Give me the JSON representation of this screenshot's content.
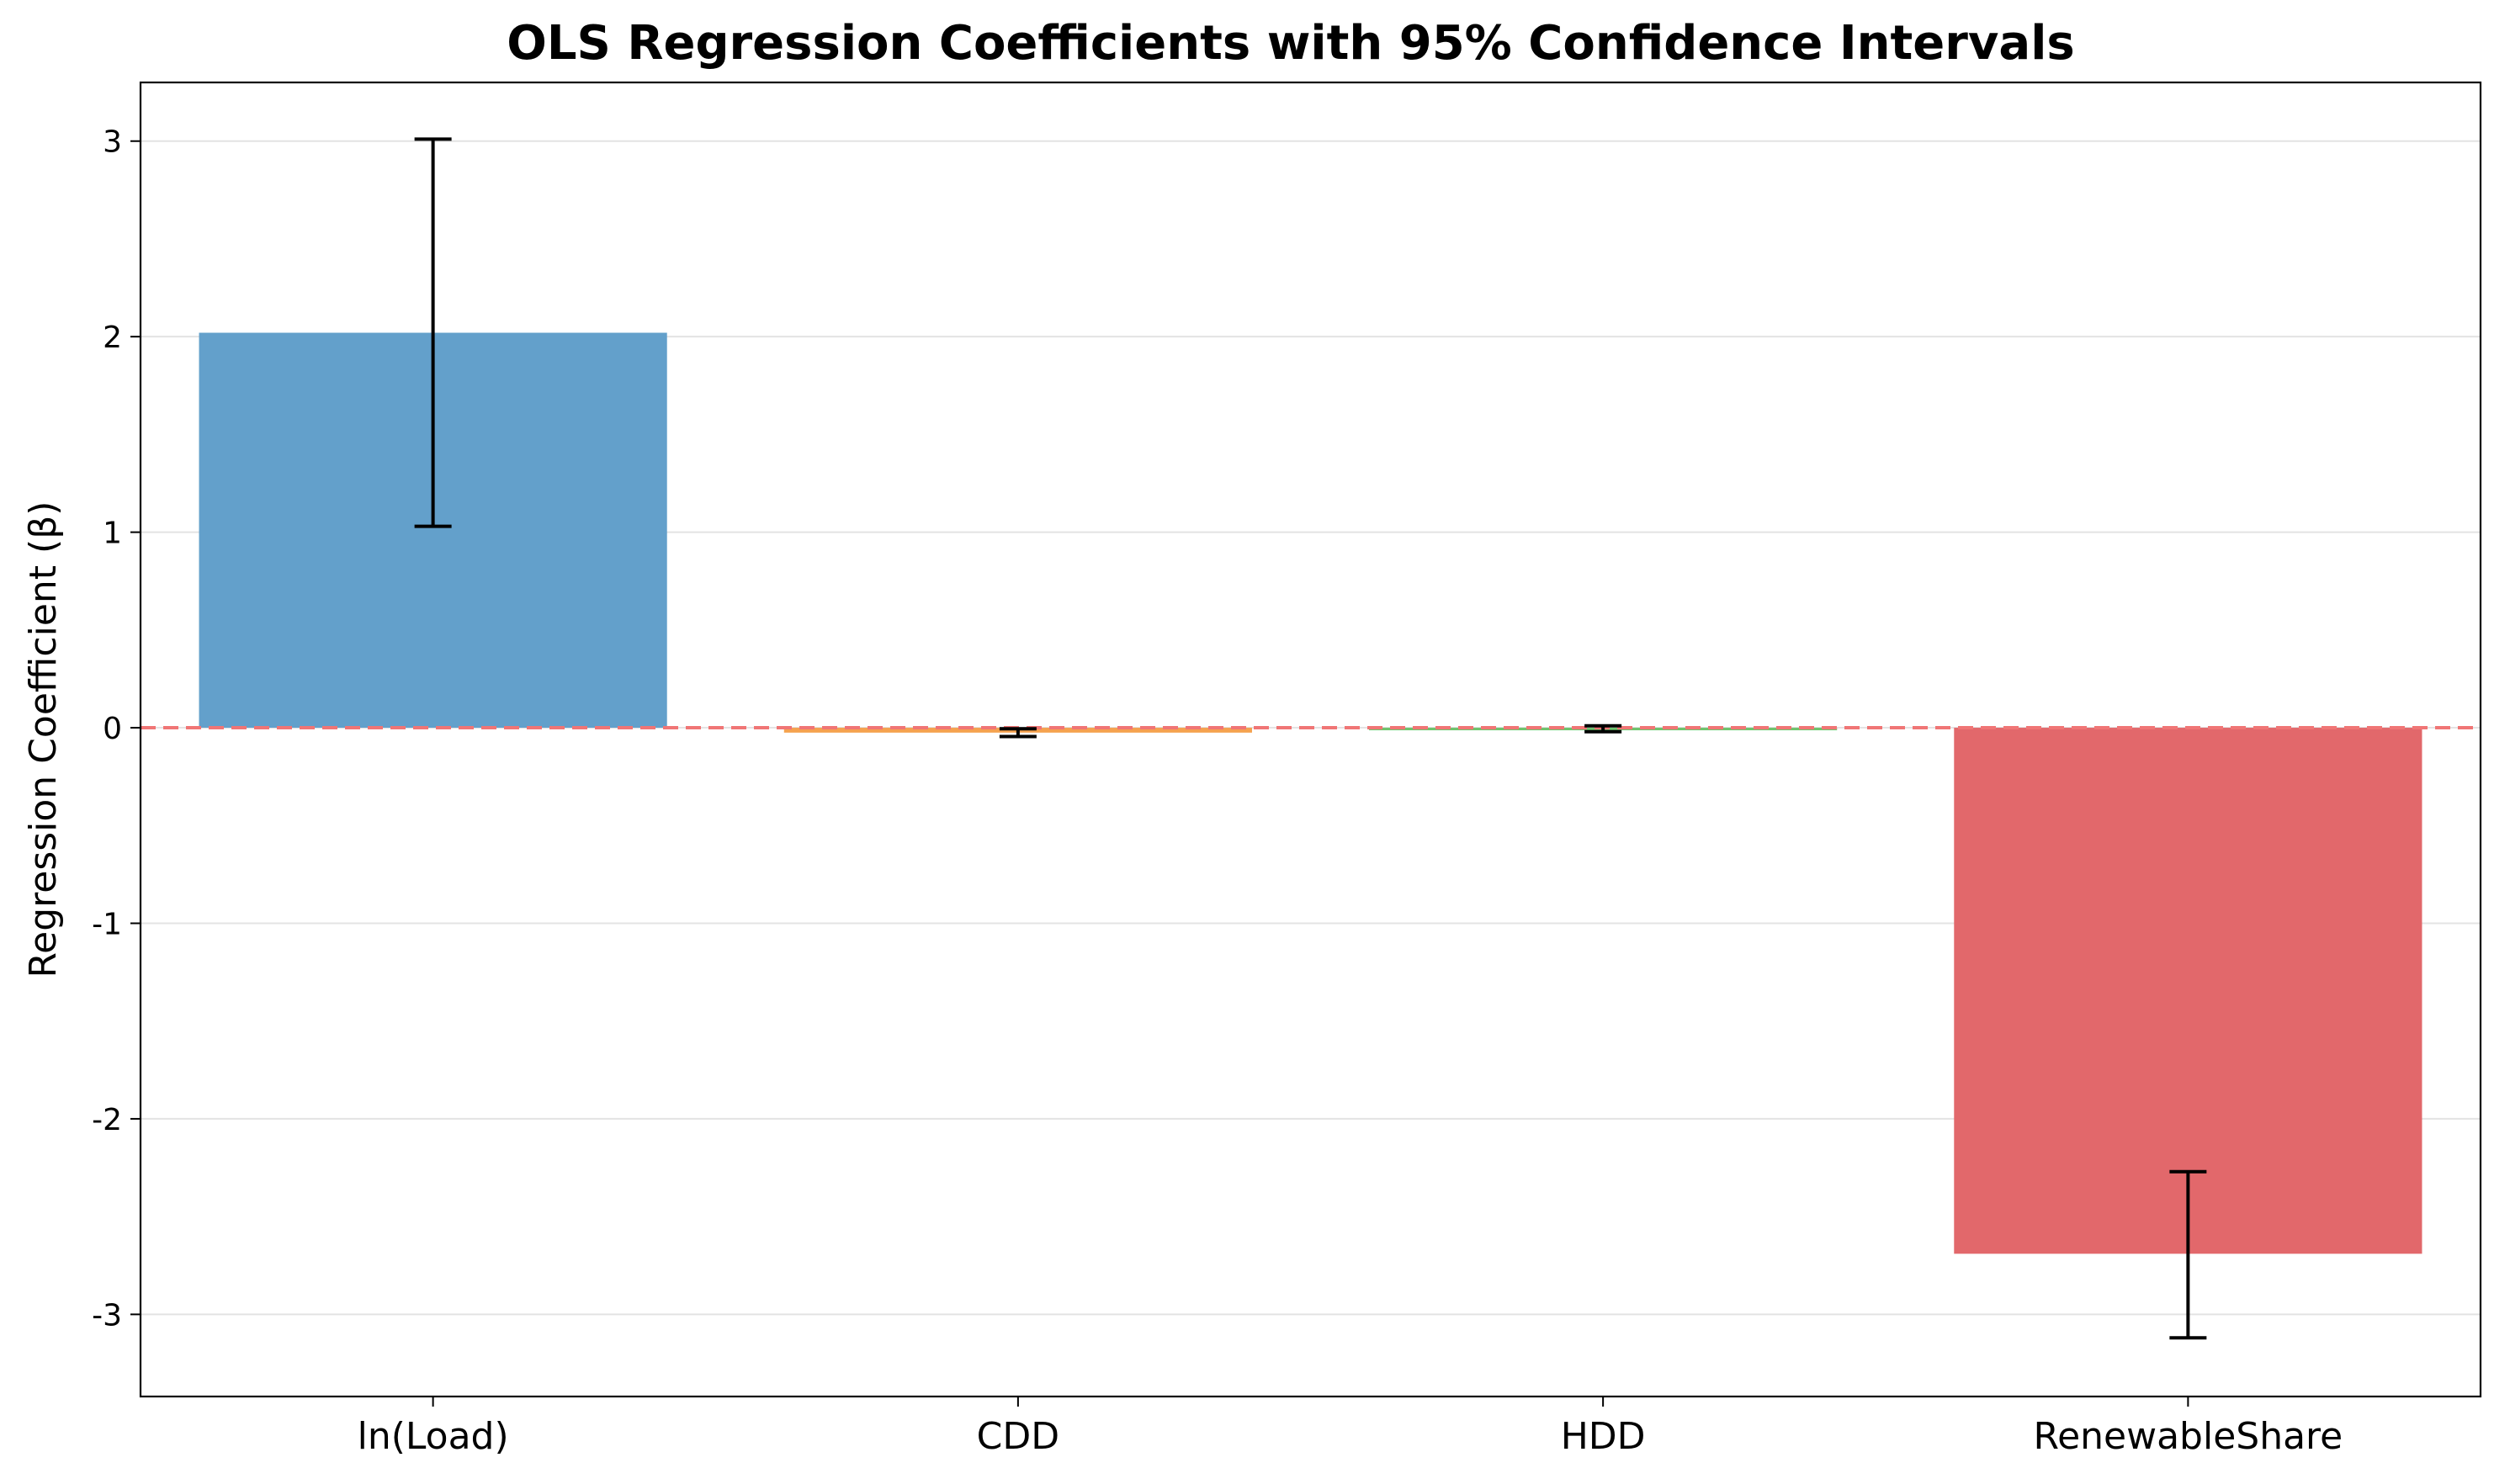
{
  "chart_data": {
    "type": "bar",
    "title": "OLS Regression Coefficients with 95% Confidence Intervals",
    "xlabel": "",
    "ylabel": "Regression Coefficient (β)",
    "categories": [
      "ln(Load)",
      "CDD",
      "HDD",
      "RenewableShare"
    ],
    "values": [
      2.02,
      -0.025,
      -0.005,
      -2.69
    ],
    "ci_lower": [
      1.03,
      -0.045,
      -0.02,
      -3.12
    ],
    "ci_upper": [
      3.01,
      -0.005,
      0.01,
      -2.27
    ],
    "bar_colors": [
      "#63a0cb",
      "#f5a24f",
      "#6cc46c",
      "#e2686b"
    ],
    "errorbar_color": "#000000",
    "reference_line": {
      "y": 0,
      "color": "#f07575",
      "style": "dashed"
    },
    "ylim": [
      -3.42,
      3.3
    ],
    "yticks": [
      -3,
      -2,
      -1,
      0,
      1,
      2,
      3
    ],
    "ytick_labels": [
      "-3",
      "-2",
      "-1",
      "0",
      "1",
      "2",
      "3"
    ],
    "grid": "y",
    "grid_color": "#e3e3e3"
  }
}
